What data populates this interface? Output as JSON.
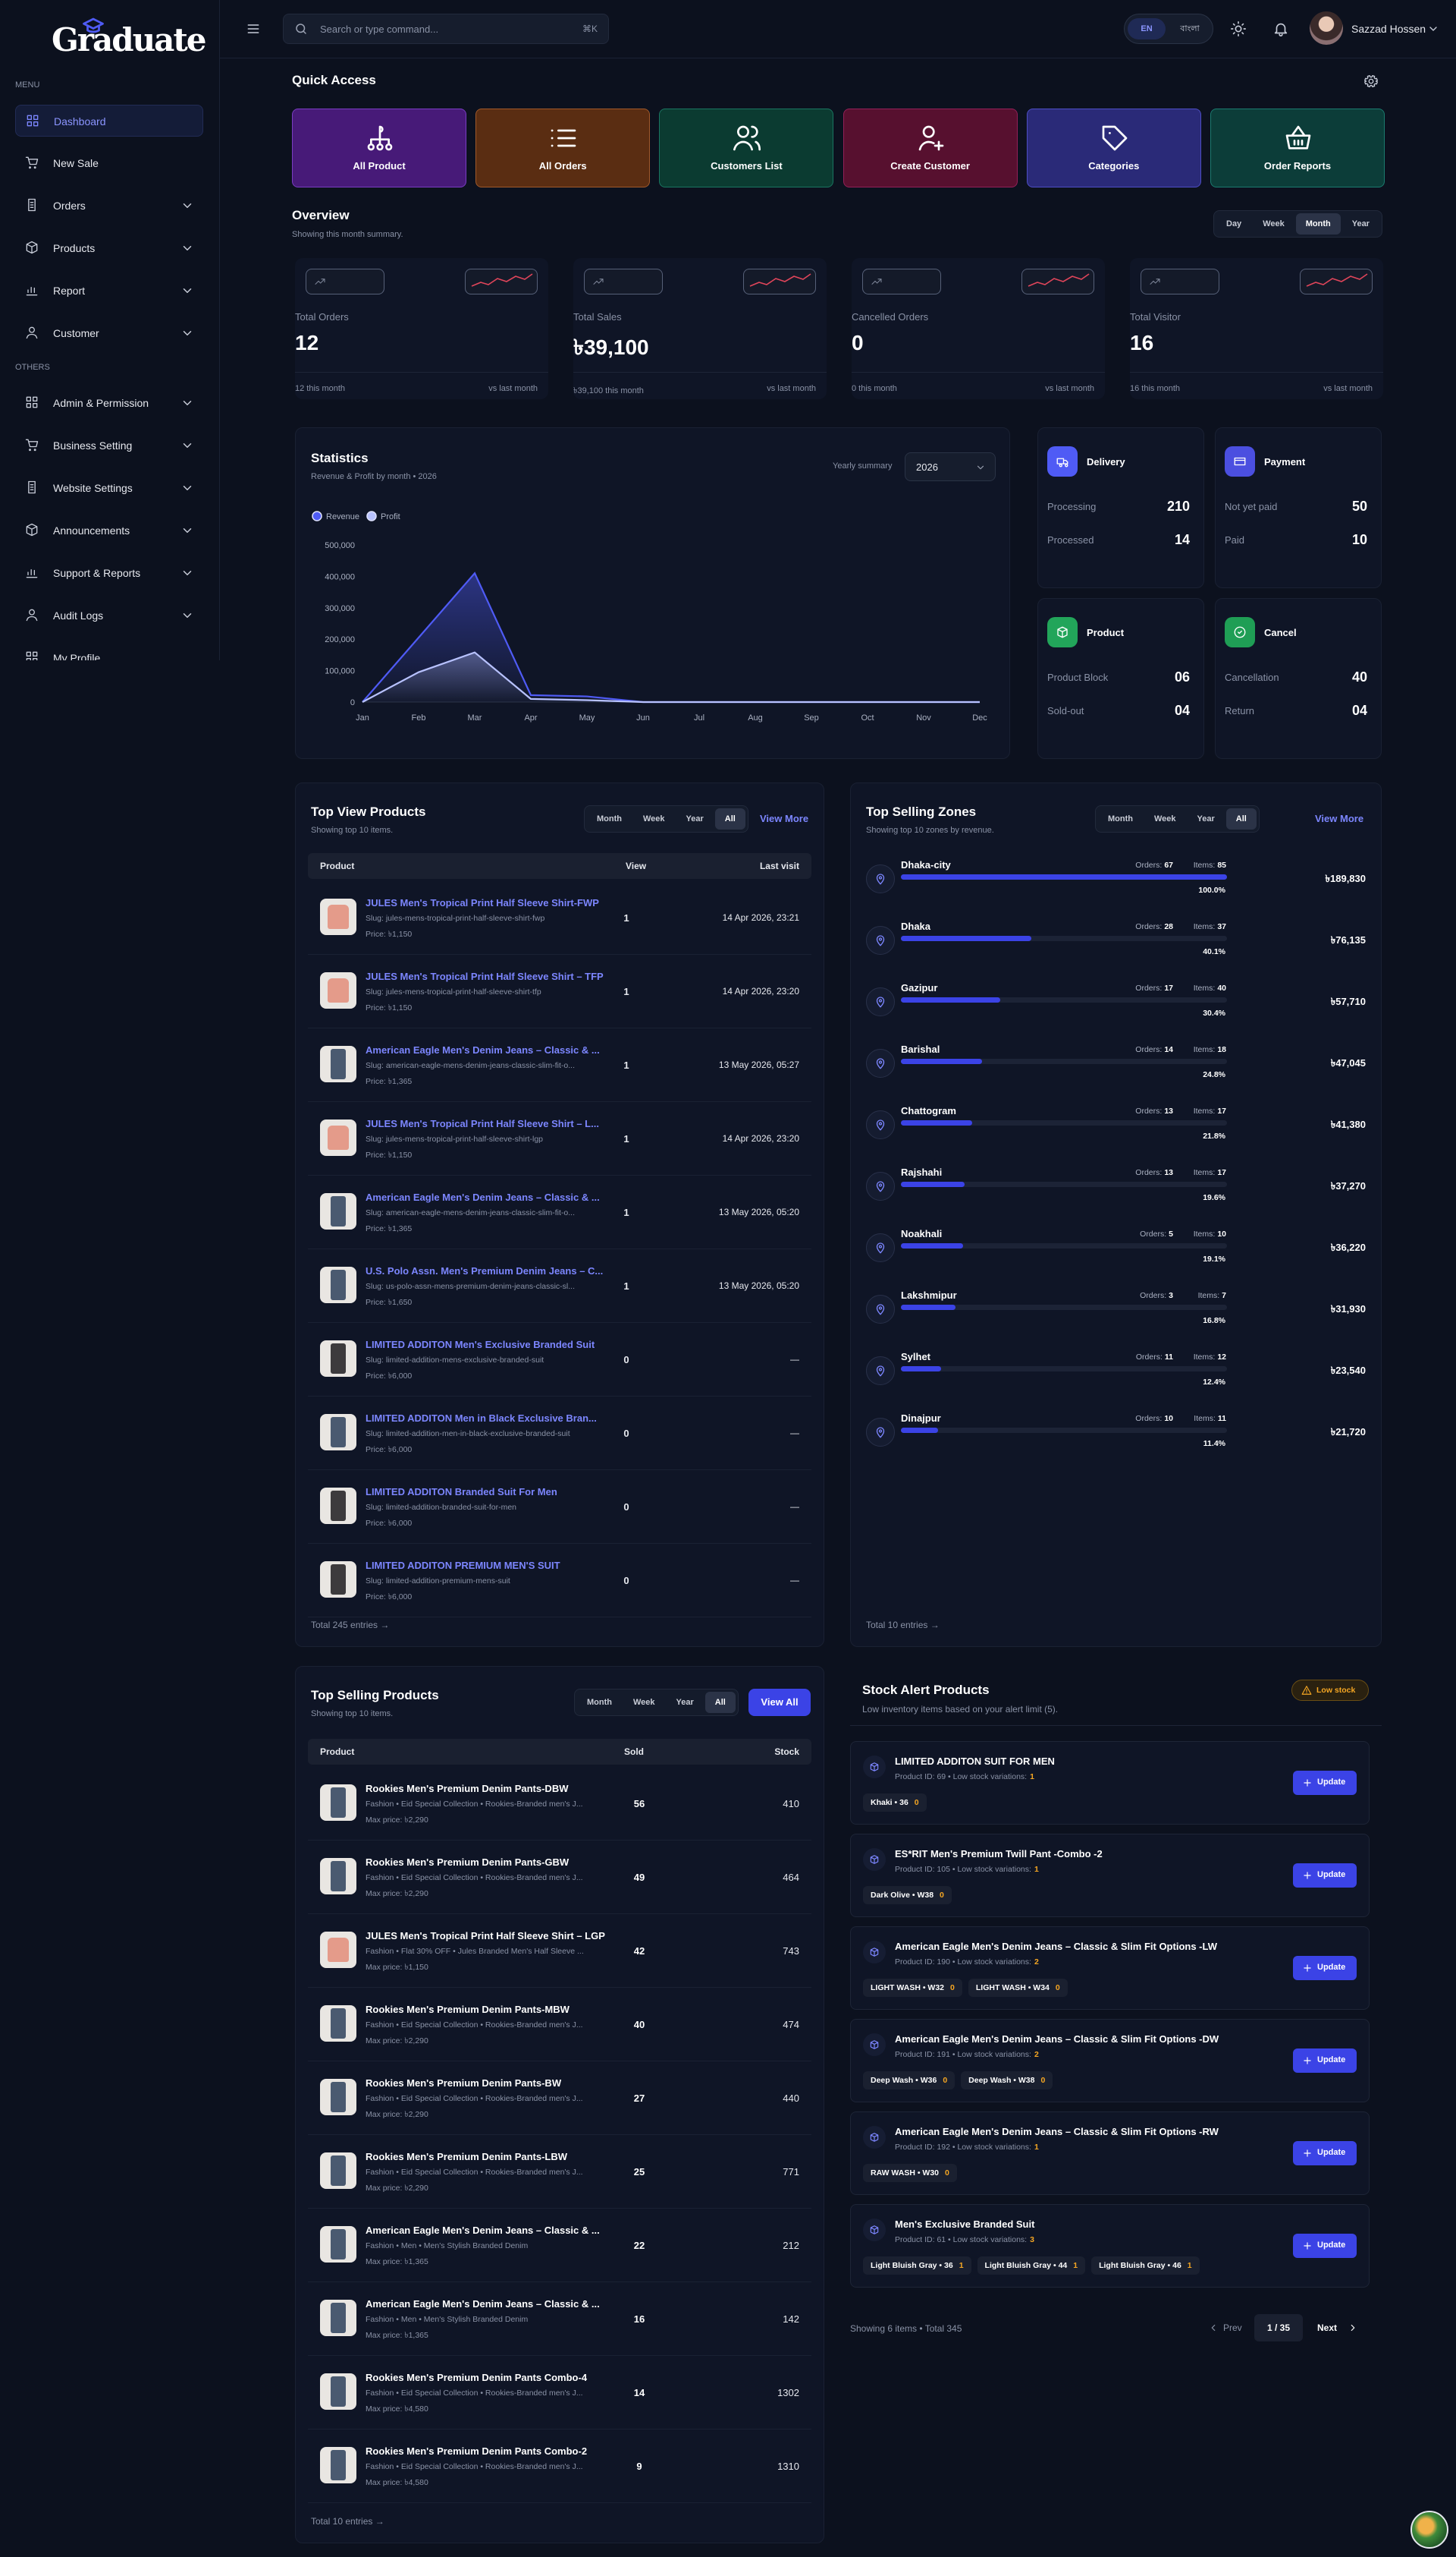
{
  "sidebar": {
    "logo": "Graduate",
    "menu_label": "MENU",
    "menu": [
      "Dashboard",
      "New Sale",
      "Orders",
      "Products",
      "Report",
      "Customer"
    ],
    "others_label": "OTHERS",
    "others": [
      "Admin & Permission",
      "Business Setting",
      "Website Settings",
      "Announcements",
      "Support & Reports",
      "Audit Logs",
      "My Profile"
    ]
  },
  "header": {
    "search_placeholder": "Search or type command...",
    "shortcut": "⌘K",
    "lang": [
      "EN",
      "বাংলা"
    ],
    "user": "Sazzad Hossen"
  },
  "quick_access": {
    "title": "Quick Access",
    "items": [
      "All Product",
      "All Orders",
      "Customers List",
      "Create Customer",
      "Categories",
      "Order Reports"
    ]
  },
  "overview": {
    "title": "Overview",
    "subtitle": "Showing this month summary.",
    "periods": [
      "Day",
      "Week",
      "Month",
      "Year"
    ],
    "compare": "vs last month",
    "cards": [
      {
        "label": "Total Orders",
        "value": "12",
        "footer": "12 this month"
      },
      {
        "label": "Total Sales",
        "value": "৳39,100",
        "footer": "৳39,100 this month"
      },
      {
        "label": "Cancelled Orders",
        "value": "0",
        "footer": "0 this month"
      },
      {
        "label": "Total Visitor",
        "value": "16",
        "footer": "16 this month"
      }
    ]
  },
  "chart_data": {
    "type": "line",
    "title": "Statistics",
    "subtitle": "Revenue & Profit by month • 2026",
    "summary_label": "Yearly summary",
    "year": "2026",
    "categories": [
      "Jan",
      "Feb",
      "Mar",
      "Apr",
      "May",
      "Jun",
      "Jul",
      "Aug",
      "Sep",
      "Oct",
      "Nov",
      "Dec"
    ],
    "series": [
      {
        "name": "Revenue",
        "color": "#4f5bf5",
        "values": [
          0,
          205000,
          410000,
          22000,
          18000,
          0,
          0,
          0,
          0,
          0,
          0,
          0
        ]
      },
      {
        "name": "Profit",
        "color": "#b8c2ff",
        "values": [
          0,
          95000,
          158000,
          10000,
          6000,
          0,
          0,
          0,
          0,
          0,
          0,
          0
        ]
      }
    ],
    "ylim": [
      0,
      500000
    ],
    "yticks": [
      0,
      {
        "value": 100000,
        "label": "100,000"
      },
      {
        "value": 200000,
        "label": "200,000"
      },
      {
        "value": 300000,
        "label": "300,000"
      },
      {
        "value": 400000,
        "label": "400,000"
      },
      {
        "value": 500000,
        "label": "500,000"
      }
    ],
    "grid": false
  },
  "summary": [
    {
      "title": "Delivery",
      "rows": [
        {
          "label": "Processing",
          "value": "210"
        },
        {
          "label": "Processed",
          "value": "14"
        }
      ]
    },
    {
      "title": "Payment",
      "rows": [
        {
          "label": "Not yet paid",
          "value": "50"
        },
        {
          "label": "Paid",
          "value": "10"
        }
      ]
    },
    {
      "title": "Product",
      "rows": [
        {
          "label": "Product Block",
          "value": "06"
        },
        {
          "label": "Sold-out",
          "value": "04"
        }
      ]
    },
    {
      "title": "Cancel",
      "rows": [
        {
          "label": "Cancellation",
          "value": "40"
        },
        {
          "label": "Return",
          "value": "04"
        }
      ]
    }
  ],
  "top_view": {
    "title": "Top View Products",
    "subtitle": "Showing top 10 items.",
    "tabs": [
      "Month",
      "Week",
      "Year",
      "All"
    ],
    "more": "View More",
    "columns": [
      "Product",
      "View",
      "Last visit"
    ],
    "rows": [
      {
        "name": "JULES Men's Tropical Print Half Sleeve Shirt-FWP",
        "slug": "Slug: jules-mens-tropical-print-half-sleeve-shirt-fwp",
        "price": "Price: ৳1,150",
        "view": 1,
        "last": "14 Apr 2026, 23:21"
      },
      {
        "name": "JULES Men's Tropical Print Half Sleeve Shirt – TFP",
        "slug": "Slug: jules-mens-tropical-print-half-sleeve-shirt-tfp",
        "price": "Price: ৳1,150",
        "view": 1,
        "last": "14 Apr 2026, 23:20"
      },
      {
        "name": "American Eagle Men's Denim Jeans – Classic & ...",
        "slug": "Slug: american-eagle-mens-denim-jeans-classic-slim-fit-o...",
        "price": "Price: ৳1,365",
        "view": 1,
        "last": "13 May 2026, 05:27"
      },
      {
        "name": "JULES Men's Tropical Print Half Sleeve Shirt – L...",
        "slug": "Slug: jules-mens-tropical-print-half-sleeve-shirt-lgp",
        "price": "Price: ৳1,150",
        "view": 1,
        "last": "14 Apr 2026, 23:20"
      },
      {
        "name": "American Eagle Men's Denim Jeans – Classic & ...",
        "slug": "Slug: american-eagle-mens-denim-jeans-classic-slim-fit-o...",
        "price": "Price: ৳1,365",
        "view": 1,
        "last": "13 May 2026, 05:20"
      },
      {
        "name": "U.S. Polo Assn. Men's Premium Denim Jeans – C...",
        "slug": "Slug: us-polo-assn-mens-premium-denim-jeans-classic-sl...",
        "price": "Price: ৳1,650",
        "view": 1,
        "last": "13 May 2026, 05:20"
      },
      {
        "name": "LIMITED ADDITON Men's Exclusive Branded Suit",
        "slug": "Slug: limited-addition-mens-exclusive-branded-suit",
        "price": "Price: ৳6,000",
        "view": 0,
        "last": "—"
      },
      {
        "name": "LIMITED ADDITON Men in Black Exclusive Bran...",
        "slug": "Slug: limited-addition-men-in-black-exclusive-branded-suit",
        "price": "Price: ৳6,000",
        "view": 0,
        "last": "—"
      },
      {
        "name": "LIMITED ADDITON Branded Suit For Men",
        "slug": "Slug: limited-addition-branded-suit-for-men",
        "price": "Price: ৳6,000",
        "view": 0,
        "last": "—"
      },
      {
        "name": "LIMITED ADDITON PREMIUM MEN'S SUIT",
        "slug": "Slug: limited-addition-premium-mens-suit",
        "price": "Price: ৳6,000",
        "view": 0,
        "last": "—"
      }
    ],
    "footer": "Total 245 entries →"
  },
  "zones": {
    "title": "Top Selling Zones",
    "subtitle": "Showing top 10 zones by revenue.",
    "tabs": [
      "Month",
      "Week",
      "Year",
      "All"
    ],
    "more": "View More",
    "orders_label": "Orders:",
    "items_label": "Items:",
    "rows": [
      {
        "name": "Dhaka-city",
        "orders": 67,
        "items": 85,
        "share": 100.0,
        "share_label": "100.0%",
        "amount": "৳189,830"
      },
      {
        "name": "Dhaka",
        "orders": 28,
        "items": 37,
        "share": 40.1,
        "share_label": "40.1%",
        "amount": "৳76,135"
      },
      {
        "name": "Gazipur",
        "orders": 17,
        "items": 40,
        "share": 30.4,
        "share_label": "30.4%",
        "amount": "৳57,710"
      },
      {
        "name": "Barishal",
        "orders": 14,
        "items": 18,
        "share": 24.8,
        "share_label": "24.8%",
        "amount": "৳47,045"
      },
      {
        "name": "Chattogram",
        "orders": 13,
        "items": 17,
        "share": 21.8,
        "share_label": "21.8%",
        "amount": "৳41,380"
      },
      {
        "name": "Rajshahi",
        "orders": 13,
        "items": 17,
        "share": 19.6,
        "share_label": "19.6%",
        "amount": "৳37,270"
      },
      {
        "name": "Noakhali",
        "orders": 5,
        "items": 10,
        "share": 19.1,
        "share_label": "19.1%",
        "amount": "৳36,220"
      },
      {
        "name": "Lakshmipur",
        "orders": 3,
        "items": 7,
        "share": 16.8,
        "share_label": "16.8%",
        "amount": "৳31,930"
      },
      {
        "name": "Sylhet",
        "orders": 11,
        "items": 12,
        "share": 12.4,
        "share_label": "12.4%",
        "amount": "৳23,540"
      },
      {
        "name": "Dinajpur",
        "orders": 10,
        "items": 11,
        "share": 11.4,
        "share_label": "11.4%",
        "amount": "৳21,720"
      }
    ],
    "footer": "Total 10 entries →"
  },
  "top_selling": {
    "title": "Top Selling Products",
    "subtitle": "Showing top 10 items.",
    "tabs": [
      "Month",
      "Week",
      "Year",
      "All"
    ],
    "more": "View All",
    "columns": [
      "Product",
      "Sold",
      "Stock"
    ],
    "rows": [
      {
        "name": "Rookies Men's Premium Denim Pants-DBW",
        "meta": "Fashion • Eid Special Collection • Rookies-Branded men's J...",
        "price": "Max price: ৳2,290",
        "sold": 56,
        "stock": 410
      },
      {
        "name": "Rookies Men's Premium Denim Pants-GBW",
        "meta": "Fashion • Eid Special Collection • Rookies-Branded men's J...",
        "price": "Max price: ৳2,290",
        "sold": 49,
        "stock": 464
      },
      {
        "name": "JULES Men's Tropical Print Half Sleeve Shirt – LGP",
        "meta": "Fashion • Flat 30% OFF • Jules Branded Men's Half Sleeve ...",
        "price": "Max price: ৳1,150",
        "sold": 42,
        "stock": 743
      },
      {
        "name": "Rookies Men's Premium Denim Pants-MBW",
        "meta": "Fashion • Eid Special Collection • Rookies-Branded men's J...",
        "price": "Max price: ৳2,290",
        "sold": 40,
        "stock": 474
      },
      {
        "name": "Rookies Men's Premium Denim Pants-BW",
        "meta": "Fashion • Eid Special Collection • Rookies-Branded men's J...",
        "price": "Max price: ৳2,290",
        "sold": 27,
        "stock": 440
      },
      {
        "name": "Rookies Men's Premium Denim Pants-LBW",
        "meta": "Fashion • Eid Special Collection • Rookies-Branded men's J...",
        "price": "Max price: ৳2,290",
        "sold": 25,
        "stock": 771
      },
      {
        "name": "American Eagle Men's Denim Jeans – Classic & ...",
        "meta": "Fashion • Men • Men's Stylish Branded Denim",
        "price": "Max price: ৳1,365",
        "sold": 22,
        "stock": 212
      },
      {
        "name": "American Eagle Men's Denim Jeans – Classic & ...",
        "meta": "Fashion • Men • Men's Stylish Branded Denim",
        "price": "Max price: ৳1,365",
        "sold": 16,
        "stock": 142
      },
      {
        "name": "Rookies Men's Premium Denim Pants Combo-4",
        "meta": "Fashion • Eid Special Collection • Rookies-Branded men's J...",
        "price": "Max price: ৳4,580",
        "sold": 14,
        "stock": 1302
      },
      {
        "name": "Rookies Men's Premium Denim Pants Combo-2",
        "meta": "Fashion • Eid Special Collection • Rookies-Branded men's J...",
        "price": "Max price: ৳4,580",
        "sold": 9,
        "stock": 1310
      }
    ],
    "footer": "Total 10 entries →"
  },
  "stock_alert": {
    "title": "Stock Alert Products",
    "subtitle": "Low inventory items based on your alert limit (5).",
    "badge": "Low stock",
    "button": "Update",
    "items": [
      {
        "name": "LIMITED ADDITON SUIT FOR MEN",
        "meta": "Product ID: 69 • Low stock variations:",
        "count": "1",
        "chips": [
          {
            "label": "Khaki • 36",
            "qty": "0"
          }
        ]
      },
      {
        "name": "ES*RIT Men's Premium Twill Pant -Combo -2",
        "meta": "Product ID: 105 • Low stock variations:",
        "count": "1",
        "chips": [
          {
            "label": "Dark Olive • W38",
            "qty": "0"
          }
        ]
      },
      {
        "name": "American Eagle Men's Denim Jeans – Classic & Slim Fit Options -LW",
        "meta": "Product ID: 190 • Low stock variations:",
        "count": "2",
        "chips": [
          {
            "label": "LIGHT WASH • W32",
            "qty": "0"
          },
          {
            "label": "LIGHT WASH • W34",
            "qty": "0"
          }
        ]
      },
      {
        "name": "American Eagle Men's Denim Jeans – Classic & Slim Fit Options -DW",
        "meta": "Product ID: 191 • Low stock variations:",
        "count": "2",
        "chips": [
          {
            "label": "Deep Wash • W36",
            "qty": "0"
          },
          {
            "label": "Deep Wash • W38",
            "qty": "0"
          }
        ]
      },
      {
        "name": "American Eagle Men's Denim Jeans – Classic & Slim Fit Options -RW",
        "meta": "Product ID: 192 • Low stock variations:",
        "count": "1",
        "chips": [
          {
            "label": "RAW WASH • W30",
            "qty": "0"
          }
        ]
      },
      {
        "name": "Men's Exclusive Branded Suit",
        "meta": "Product ID: 61 • Low stock variations:",
        "count": "3",
        "chips": [
          {
            "label": "Light Bluish Gray • 36",
            "qty": "1"
          },
          {
            "label": "Light Bluish Gray • 44",
            "qty": "1"
          },
          {
            "label": "Light Bluish Gray • 46",
            "qty": "1"
          }
        ]
      }
    ],
    "footer": "Showing 6 items • Total 345",
    "prev": "Prev",
    "page": "1 / 35",
    "next": "Next"
  }
}
